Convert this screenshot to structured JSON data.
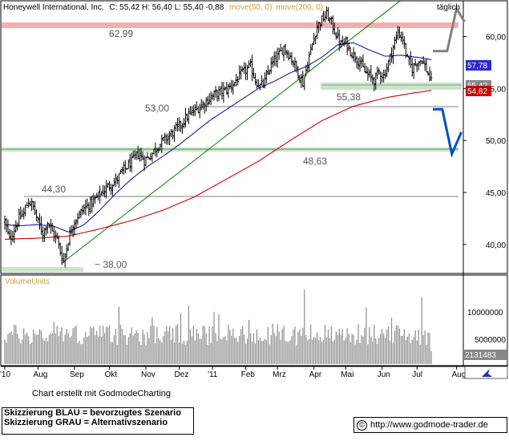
{
  "header": {
    "title": "Honeywell International, Inc.",
    "ohlc": "C: 55,42  H: 56,40  L: 55,40  -0,88",
    "ma1": "move(50, 0)",
    "ma2": "move(200, 0)",
    "period": "täglich"
  },
  "colors": {
    "price_bars": "#000000",
    "ma50": "#1a1aa6",
    "ma200": "#cc0000",
    "trend_line": "#008000",
    "resistance_zone": "#f4aeb0",
    "support_zone": "#c8e6c8",
    "blue_scenario": "#0050c8",
    "grey_scenario": "#808080",
    "volume_label": "#c8a040"
  },
  "levels": {
    "l6299": "62,99",
    "l5538": "55,38",
    "l5300": "53,00",
    "l4863": "48,63",
    "l4430": "44,30",
    "l3800": "~ 38,00"
  },
  "price_tags": {
    "ma50_value": "57,78",
    "ma200_value": "54,82",
    "close_value": "55,42"
  },
  "volume": {
    "label": "VolumeUnits",
    "last_value": "2131483",
    "axis_label": "10000000",
    "axis_label2": "5000000"
  },
  "footer": {
    "credit": "Chart erstellt mit GodmodeCharting",
    "legend_blue": "Skizzierung BLAU = bevorzugtes Szenario",
    "legend_grey": "Skizzierung GRAU = Alternativszenario",
    "url": "http://www.godmode-trader.de",
    "copyright_symbol": "©"
  },
  "chart_data": {
    "type": "bar",
    "title": "Honeywell International, Inc.",
    "period": "täglich",
    "x_ticks": [
      "'10",
      "Aug",
      "Sep",
      "Okt",
      "Nov",
      "Dez",
      "'11",
      "Feb",
      "Mrz",
      "Apr",
      "Mai",
      "Jun",
      "Jul",
      "Aug"
    ],
    "y_ticks": [
      "60,00",
      "55,00",
      "50,00",
      "45,00",
      "40,00"
    ],
    "y_tick_values": [
      60,
      55,
      50,
      45,
      40
    ],
    "ylim": [
      37.6,
      63.2
    ],
    "anchors": [
      [
        0,
        42.2
      ],
      [
        3,
        40.4
      ],
      [
        6,
        41.5
      ],
      [
        9,
        42.5
      ],
      [
        12,
        43.0
      ],
      [
        15,
        44.2
      ],
      [
        18,
        43.6
      ],
      [
        21,
        42.1
      ],
      [
        24,
        41.1
      ],
      [
        27,
        42.2
      ],
      [
        30,
        41.2
      ],
      [
        33,
        40.5
      ],
      [
        35,
        39.3
      ],
      [
        37,
        38.4
      ],
      [
        40,
        40.4
      ],
      [
        43,
        42.0
      ],
      [
        46,
        42.7
      ],
      [
        50,
        43.5
      ],
      [
        55,
        44.0
      ],
      [
        60,
        44.8
      ],
      [
        65,
        45.6
      ],
      [
        70,
        46.1
      ],
      [
        75,
        47.2
      ],
      [
        80,
        47.9
      ],
      [
        84,
        48.8
      ],
      [
        88,
        48.1
      ],
      [
        92,
        48.6
      ],
      [
        96,
        49.4
      ],
      [
        100,
        50.0
      ],
      [
        105,
        50.6
      ],
      [
        110,
        51.4
      ],
      [
        115,
        52.3
      ],
      [
        120,
        52.9
      ],
      [
        125,
        53.5
      ],
      [
        130,
        54.2
      ],
      [
        135,
        54.6
      ],
      [
        140,
        54.9
      ],
      [
        145,
        55.6
      ],
      [
        150,
        56.5
      ],
      [
        155,
        57.1
      ],
      [
        158,
        55.8
      ],
      [
        161,
        55.2
      ],
      [
        164,
        55.6
      ],
      [
        167,
        57.0
      ],
      [
        170,
        57.7
      ],
      [
        173,
        58.2
      ],
      [
        176,
        59.0
      ],
      [
        179,
        58.3
      ],
      [
        182,
        57.6
      ],
      [
        185,
        56.5
      ],
      [
        188,
        55.5
      ],
      [
        191,
        57.4
      ],
      [
        194,
        59.3
      ],
      [
        197,
        61.0
      ],
      [
        200,
        61.6
      ],
      [
        203,
        62.1
      ],
      [
        206,
        61.3
      ],
      [
        209,
        60.2
      ],
      [
        212,
        59.2
      ],
      [
        215,
        59.4
      ],
      [
        218,
        58.6
      ],
      [
        221,
        58.1
      ],
      [
        224,
        57.5
      ],
      [
        227,
        56.6
      ],
      [
        230,
        56.2
      ],
      [
        233,
        55.8
      ],
      [
        236,
        56.6
      ],
      [
        239,
        56.2
      ],
      [
        242,
        57.5
      ],
      [
        245,
        59.0
      ],
      [
        248,
        60.4
      ],
      [
        251,
        59.8
      ],
      [
        254,
        57.7
      ],
      [
        257,
        56.9
      ],
      [
        260,
        57.6
      ],
      [
        263,
        57.8
      ],
      [
        266,
        56.8
      ],
      [
        269,
        55.6
      ]
    ],
    "ma50": [
      [
        0,
        41.9
      ],
      [
        10,
        41.8
      ],
      [
        20,
        41.9
      ],
      [
        30,
        41.8
      ],
      [
        40,
        41.2
      ],
      [
        50,
        41.9
      ],
      [
        60,
        43.3
      ],
      [
        70,
        44.9
      ],
      [
        80,
        46.3
      ],
      [
        90,
        47.5
      ],
      [
        100,
        48.5
      ],
      [
        110,
        49.6
      ],
      [
        120,
        50.8
      ],
      [
        130,
        52.0
      ],
      [
        140,
        53.0
      ],
      [
        150,
        54.0
      ],
      [
        160,
        55.0
      ],
      [
        170,
        55.7
      ],
      [
        180,
        56.5
      ],
      [
        190,
        57.1
      ],
      [
        200,
        58.0
      ],
      [
        210,
        59.2
      ],
      [
        220,
        59.4
      ],
      [
        230,
        58.7
      ],
      [
        240,
        58.1
      ],
      [
        250,
        58.2
      ],
      [
        260,
        58.0
      ],
      [
        269,
        57.78
      ]
    ],
    "ma200": [
      [
        0,
        40.5
      ],
      [
        20,
        40.6
      ],
      [
        40,
        40.8
      ],
      [
        60,
        41.5
      ],
      [
        80,
        42.3
      ],
      [
        100,
        43.3
      ],
      [
        120,
        44.6
      ],
      [
        140,
        46.3
      ],
      [
        160,
        48.0
      ],
      [
        180,
        50.0
      ],
      [
        200,
        51.9
      ],
      [
        220,
        53.3
      ],
      [
        240,
        54.1
      ],
      [
        255,
        54.5
      ],
      [
        269,
        54.82
      ]
    ],
    "trend_line": [
      [
        36,
        38.2
      ],
      [
        250,
        63.5
      ]
    ],
    "horizontal_levels": [
      62.99,
      55.38,
      53.0,
      48.63,
      44.3,
      38.0
    ],
    "last_close": 55.42,
    "scenario_blue": [
      [
        270,
        53.0
      ],
      [
        276,
        53.0
      ],
      [
        282,
        48.7
      ],
      [
        288,
        50.8
      ]
    ],
    "scenario_grey": [
      [
        270,
        58.6
      ],
      [
        279,
        58.6
      ],
      [
        285,
        62.7
      ],
      [
        290,
        61.4
      ]
    ],
    "volume_range": [
      0,
      14000000
    ],
    "volume_last": 2131483
  }
}
